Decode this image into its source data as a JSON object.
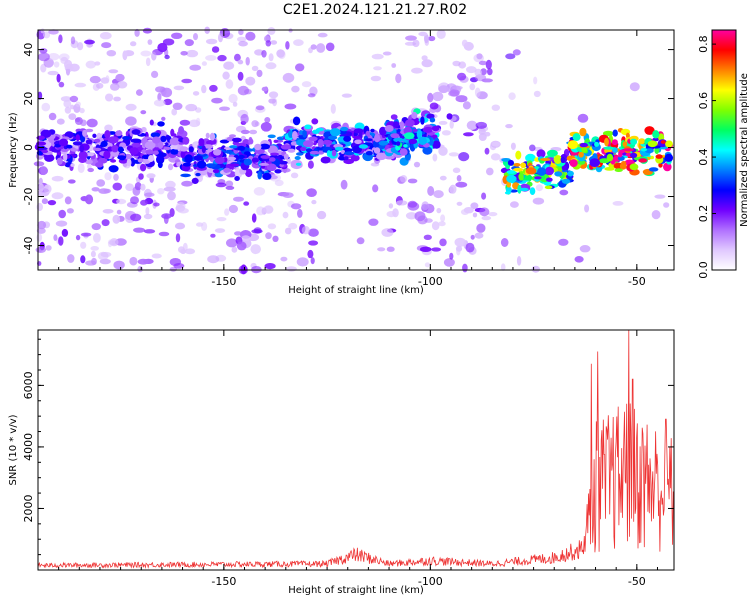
{
  "figure": {
    "title": "C2E1.2024.121.21.27.R02"
  },
  "chart_data": [
    {
      "type": "heatmap",
      "xlabel": "Height of straight line (km)",
      "ylabel": "Frequency (Hz)",
      "xlim": [
        -195,
        -41
      ],
      "ylim": [
        -50,
        48
      ],
      "xticks": [
        -150,
        -100,
        -50
      ],
      "yticks": [
        -40,
        -20,
        0,
        20,
        40
      ],
      "colorbar": {
        "label": "Normalized spectral amplitude",
        "range": [
          0,
          0.85
        ],
        "ticks": [
          0.0,
          0.2,
          0.4,
          0.6,
          0.8
        ],
        "colormap": [
          "#ffffff",
          "#e0c8ff",
          "#b070ff",
          "#7000ff",
          "#0000ff",
          "#0080ff",
          "#00ffff",
          "#00ff60",
          "#80ff00",
          "#ffff00",
          "#ff8000",
          "#ff0000",
          "#ff00a0"
        ]
      },
      "bands": [
        {
          "x": [
            -195,
            -160
          ],
          "freq_center": 0,
          "level": 0.25
        },
        {
          "x": [
            -160,
            -135
          ],
          "freq_center": -4,
          "level": 0.3
        },
        {
          "x": [
            -135,
            -105
          ],
          "freq_center": 2,
          "level": 0.35
        },
        {
          "x": [
            -110,
            -98
          ],
          "freq_center": 6,
          "level": 0.4
        },
        {
          "x": [
            -82,
            -66
          ],
          "freq_center": -10,
          "level": 0.6
        },
        {
          "x": [
            -66,
            -42
          ],
          "freq_center": -2,
          "level": 0.75
        }
      ]
    },
    {
      "type": "line",
      "xlabel": "Height of straight line (km)",
      "ylabel": "SNR (10 * v/v)",
      "xlim": [
        -195,
        -41
      ],
      "ylim": [
        0,
        7800
      ],
      "xticks": [
        -150,
        -100,
        -50
      ],
      "yticks": [
        2000,
        4000,
        6000
      ],
      "color": "#ee3333",
      "profile": [
        {
          "x": -195,
          "y": 150
        },
        {
          "x": -125,
          "y": 200
        },
        {
          "x": -118,
          "y": 500
        },
        {
          "x": -110,
          "y": 200
        },
        {
          "x": -100,
          "y": 300
        },
        {
          "x": -85,
          "y": 200
        },
        {
          "x": -70,
          "y": 400
        },
        {
          "x": -63,
          "y": 700
        },
        {
          "x": -60,
          "y": 3500
        },
        {
          "x": -52,
          "y": 4000
        },
        {
          "x": -41,
          "y": 3200
        }
      ],
      "peaks": [
        {
          "x": -61,
          "y": 6700
        },
        {
          "x": -59.5,
          "y": 7100
        },
        {
          "x": -52.5,
          "y": 5400
        },
        {
          "x": -52,
          "y": 7800
        },
        {
          "x": -51,
          "y": 6200
        },
        {
          "x": -43,
          "y": 4900
        },
        {
          "x": -42,
          "y": 4000
        }
      ]
    }
  ]
}
